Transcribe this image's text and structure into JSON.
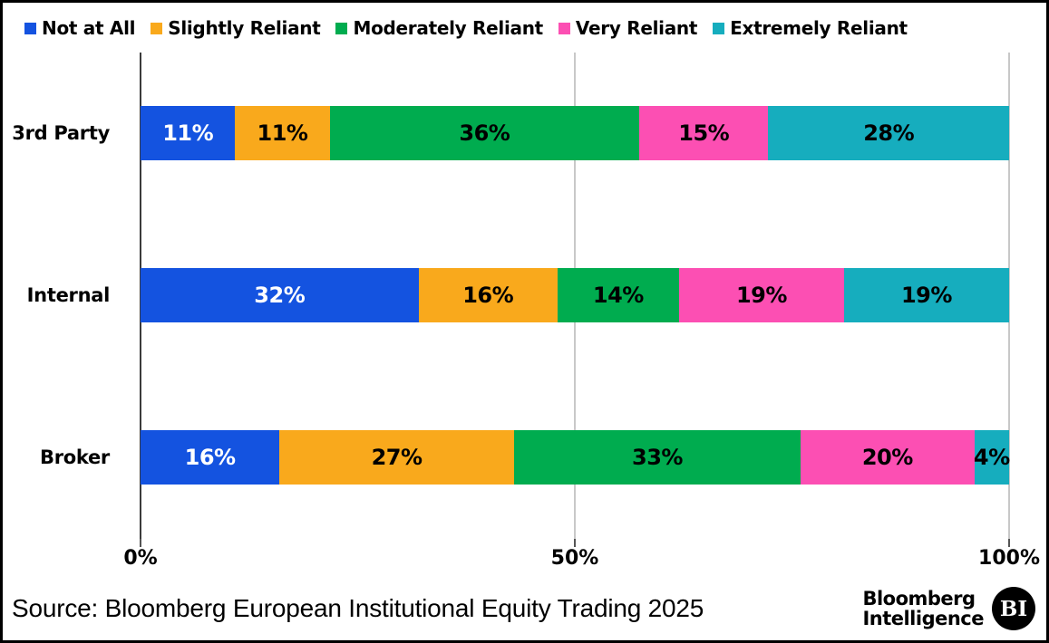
{
  "chart_data": {
    "type": "bar",
    "orientation": "horizontal",
    "stacked": true,
    "categories": [
      "3rd Party",
      "Internal",
      "Broker"
    ],
    "series": [
      {
        "name": "Not at All",
        "color": "#1453E0",
        "label_color": "#ffffff",
        "values": [
          11,
          32,
          16
        ]
      },
      {
        "name": "Slightly Reliant",
        "color": "#F9A91C",
        "label_color": "#000000",
        "values": [
          11,
          16,
          27
        ]
      },
      {
        "name": "Moderately Reliant",
        "color": "#00AC4F",
        "label_color": "#000000",
        "values": [
          36,
          14,
          33
        ]
      },
      {
        "name": "Very Reliant",
        "color": "#FC4FB3",
        "label_color": "#000000",
        "values": [
          15,
          19,
          20
        ]
      },
      {
        "name": "Extremely Reliant",
        "color": "#16ADBE",
        "label_color": "#000000",
        "values": [
          28,
          19,
          4
        ]
      }
    ],
    "value_suffix": "%",
    "xlabel": "",
    "ylabel": "",
    "title": "",
    "x_axis": {
      "range": [
        0,
        100
      ],
      "tick_values": [
        0,
        50,
        100
      ],
      "tick_labels": [
        "0%",
        "50%",
        "100%"
      ]
    },
    "legend_position": "top",
    "grid": true,
    "gridline_color": "#c8c8c8",
    "axis_line_color": "#3b3b3b"
  },
  "footer": {
    "source": "Source: Bloomberg European Institutional Equity Trading 2025",
    "logo_line1": "Bloomberg",
    "logo_line2": "Intelligence",
    "logo_badge": "BI"
  }
}
